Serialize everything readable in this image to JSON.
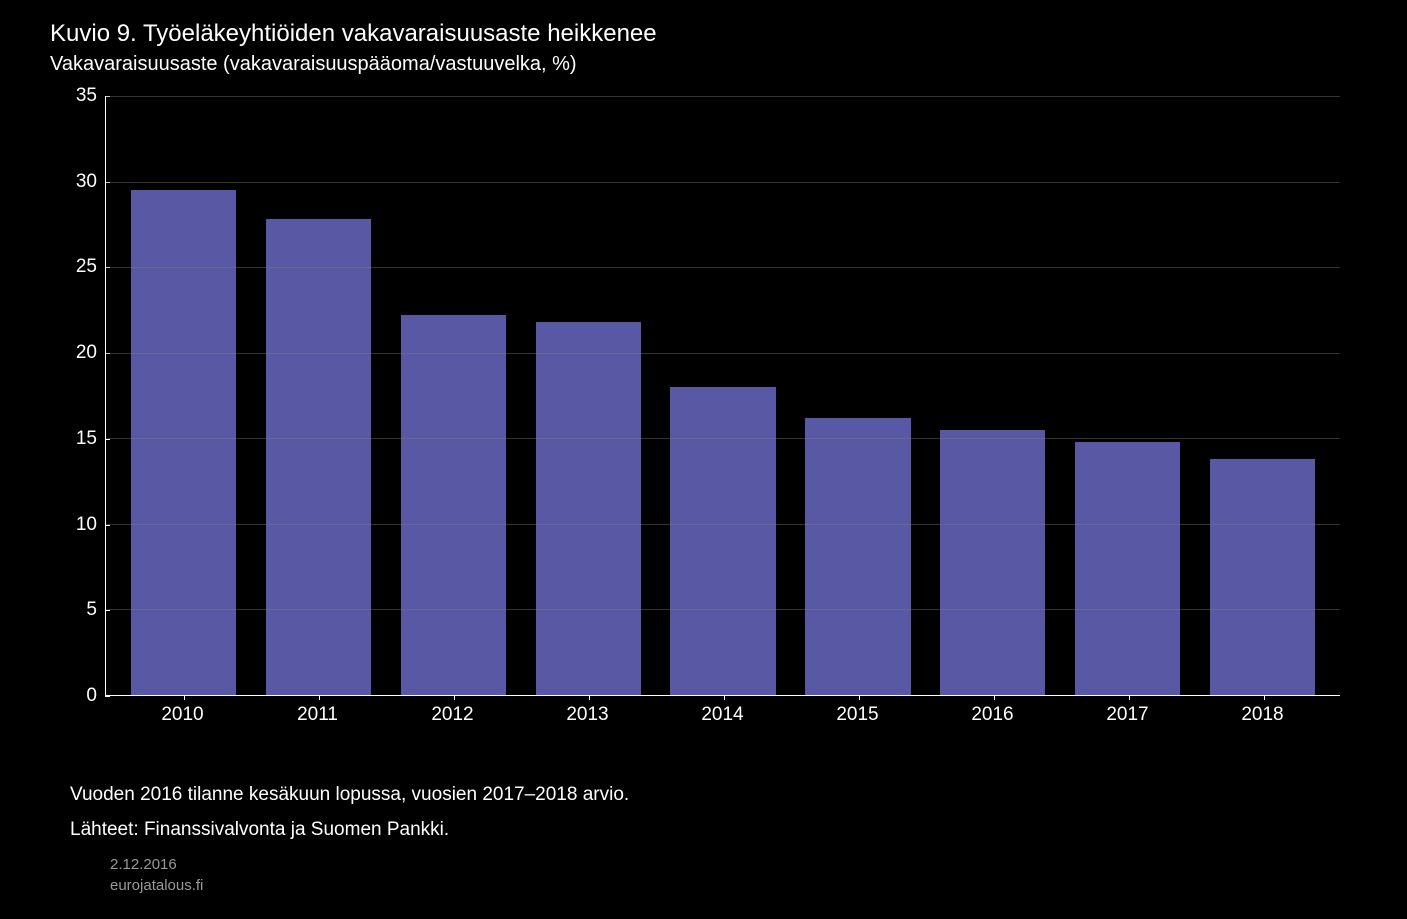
{
  "chart": {
    "type": "bar",
    "title": "Kuvio 9. Työeläkeyhtiöiden vakavaraisuusaste heikkenee",
    "subtitle": "Vakavaraisuusaste (vakavaraisuuspääoma/vastuuvelka, %)",
    "categories": [
      "2010",
      "2011",
      "2012",
      "2013",
      "2014",
      "2015",
      "2016",
      "2017",
      "2018"
    ],
    "values": [
      29.5,
      27.8,
      22.2,
      21.8,
      18.0,
      16.2,
      15.5,
      14.8,
      13.8
    ],
    "bar_color": "#5858a5",
    "ylim": [
      0,
      35
    ],
    "ytick_step": 5,
    "yticks": [
      0,
      5,
      10,
      15,
      20,
      25,
      30,
      35
    ],
    "background_color": "#000000",
    "grid_color": "rgba(128,128,128,0.4)",
    "axis_color": "#ffffff",
    "text_color": "#ffffff",
    "title_fontsize": 24,
    "label_fontsize": 19,
    "bar_width": 0.78,
    "footnote": "Vuoden 2016 tilanne kesäkuun lopussa, vuosien 2017–2018 arvio.",
    "source": "Lähteet: Finanssivalvonta ja Suomen Pankki.",
    "meta_date": "2.12.2016",
    "meta_site": "eurojatalous.fi"
  }
}
